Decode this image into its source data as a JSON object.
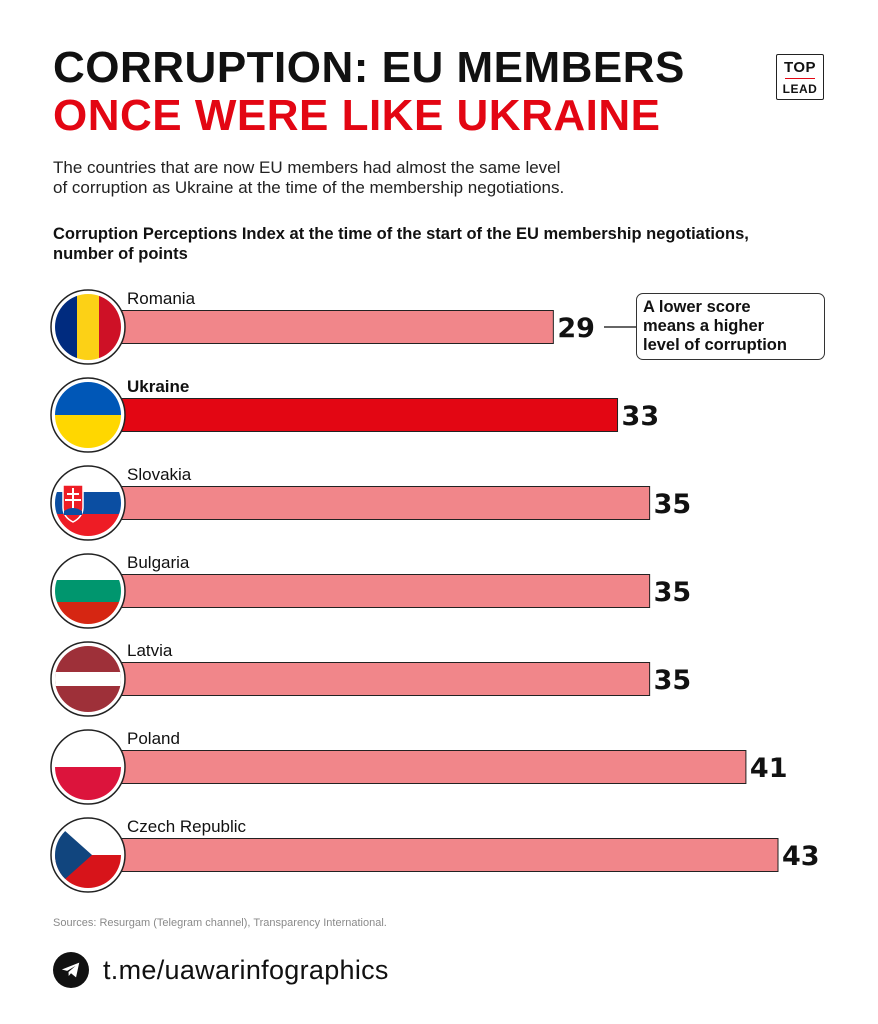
{
  "title": {
    "line1": "CORRUPTION: EU MEMBERS",
    "line2": "ONCE WERE LIKE UKRAINE"
  },
  "logo": {
    "top": "TOP",
    "bottom": "LEAD"
  },
  "description": {
    "line1": "The countries that are now EU members had almost the same level",
    "line2": "of corruption as Ukraine at the time of the membership negotiations."
  },
  "chart_data": {
    "type": "bar",
    "orientation": "horizontal",
    "title": "Corruption Perceptions Index at the time of the start of the EU membership negotiations, number of points",
    "xlabel": "",
    "ylabel": "",
    "xlim": [
      0,
      43
    ],
    "grid": false,
    "legend": "none",
    "categories": [
      "Romania",
      "Ukraine",
      "Slovakia",
      "Bulgaria",
      "Latvia",
      "Poland",
      "Czech Republic"
    ],
    "values": [
      29,
      33,
      35,
      35,
      35,
      41,
      43
    ],
    "highlight": "Ukraine",
    "annotation": "A lower score means a higher level of corruption"
  },
  "colors": {
    "bar": "#f1868a",
    "bar_highlight": "#e30613",
    "title_accent": "#e30613"
  },
  "annotation": {
    "line1": "A lower score",
    "line2": "means a higher",
    "line3": "level of corruption"
  },
  "source": "Sources: Resurgam (Telegram channel), Transparency International.",
  "footer": {
    "icon": "telegram-icon",
    "link": "t.me/uawarinfographics"
  }
}
